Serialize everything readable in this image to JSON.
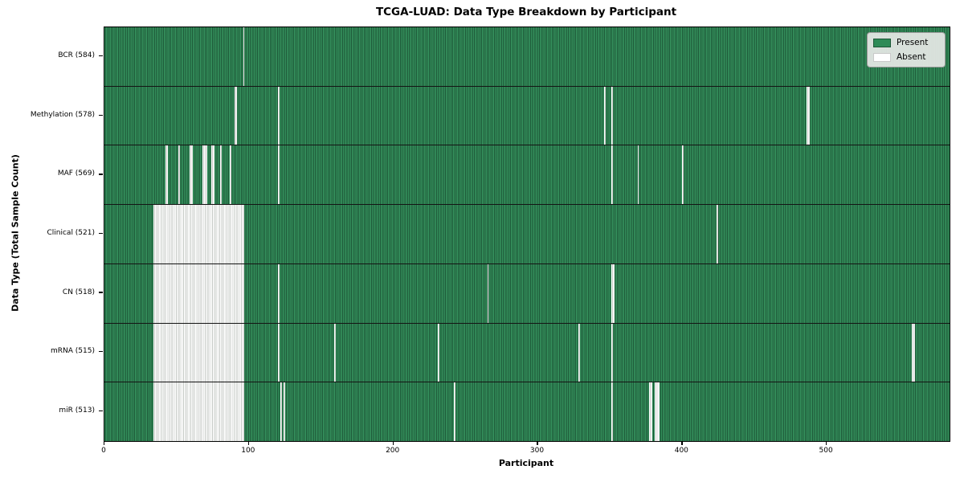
{
  "chart_data": {
    "type": "heatmap",
    "title": "TCGA-LUAD: Data Type Breakdown by Participant",
    "xlabel": "Participant",
    "ylabel": "Data Type (Total Sample Count)",
    "n_participants": 585,
    "x_ticks": [
      0,
      100,
      200,
      300,
      400,
      500
    ],
    "grid": false,
    "legend": {
      "position": "upper-right",
      "entries": [
        {
          "label": "Present",
          "color": "#2e8b57"
        },
        {
          "label": "Absent",
          "color": "#ffffff"
        }
      ]
    },
    "rows": [
      {
        "data_type": "BCR",
        "label": "BCR (584)",
        "present_count": 584,
        "absent_ranges": [
          [
            96,
            96
          ]
        ]
      },
      {
        "data_type": "Methylation",
        "label": "Methylation (578)",
        "present_count": 578,
        "absent_ranges": [
          [
            90,
            91
          ],
          [
            120,
            120
          ],
          [
            346,
            346
          ],
          [
            351,
            351
          ],
          [
            486,
            487
          ]
        ]
      },
      {
        "data_type": "MAF",
        "label": "MAF (569)",
        "present_count": 569,
        "absent_ranges": [
          [
            42,
            43
          ],
          [
            51,
            51
          ],
          [
            59,
            60
          ],
          [
            68,
            70
          ],
          [
            74,
            75
          ],
          [
            80,
            80
          ],
          [
            87,
            87
          ],
          [
            120,
            120
          ],
          [
            351,
            351
          ],
          [
            369,
            369
          ],
          [
            400,
            400
          ]
        ]
      },
      {
        "data_type": "Clinical",
        "label": "Clinical (521)",
        "present_count": 521,
        "absent_ranges": [
          [
            34,
            96
          ],
          [
            424,
            424
          ]
        ]
      },
      {
        "data_type": "CN",
        "label": "CN (518)",
        "present_count": 518,
        "absent_ranges": [
          [
            34,
            96
          ],
          [
            120,
            120
          ],
          [
            265,
            265
          ],
          [
            351,
            352
          ]
        ]
      },
      {
        "data_type": "mRNA",
        "label": "mRNA (515)",
        "present_count": 515,
        "absent_ranges": [
          [
            34,
            96
          ],
          [
            120,
            120
          ],
          [
            159,
            159
          ],
          [
            231,
            231
          ],
          [
            328,
            328
          ],
          [
            351,
            351
          ],
          [
            559,
            560
          ]
        ]
      },
      {
        "data_type": "miR",
        "label": "miR (513)",
        "present_count": 513,
        "absent_ranges": [
          [
            34,
            96
          ],
          [
            122,
            122
          ],
          [
            124,
            124
          ],
          [
            242,
            242
          ],
          [
            351,
            351
          ],
          [
            377,
            378
          ],
          [
            381,
            383
          ]
        ]
      }
    ],
    "colors": {
      "present": "#2e8b57",
      "present_stripe_light": "#36945f",
      "present_stripe_dark": "#1d5737",
      "absent": "#ffffff",
      "absent_stripe": "#c6cac6",
      "separator": "#141414"
    }
  }
}
